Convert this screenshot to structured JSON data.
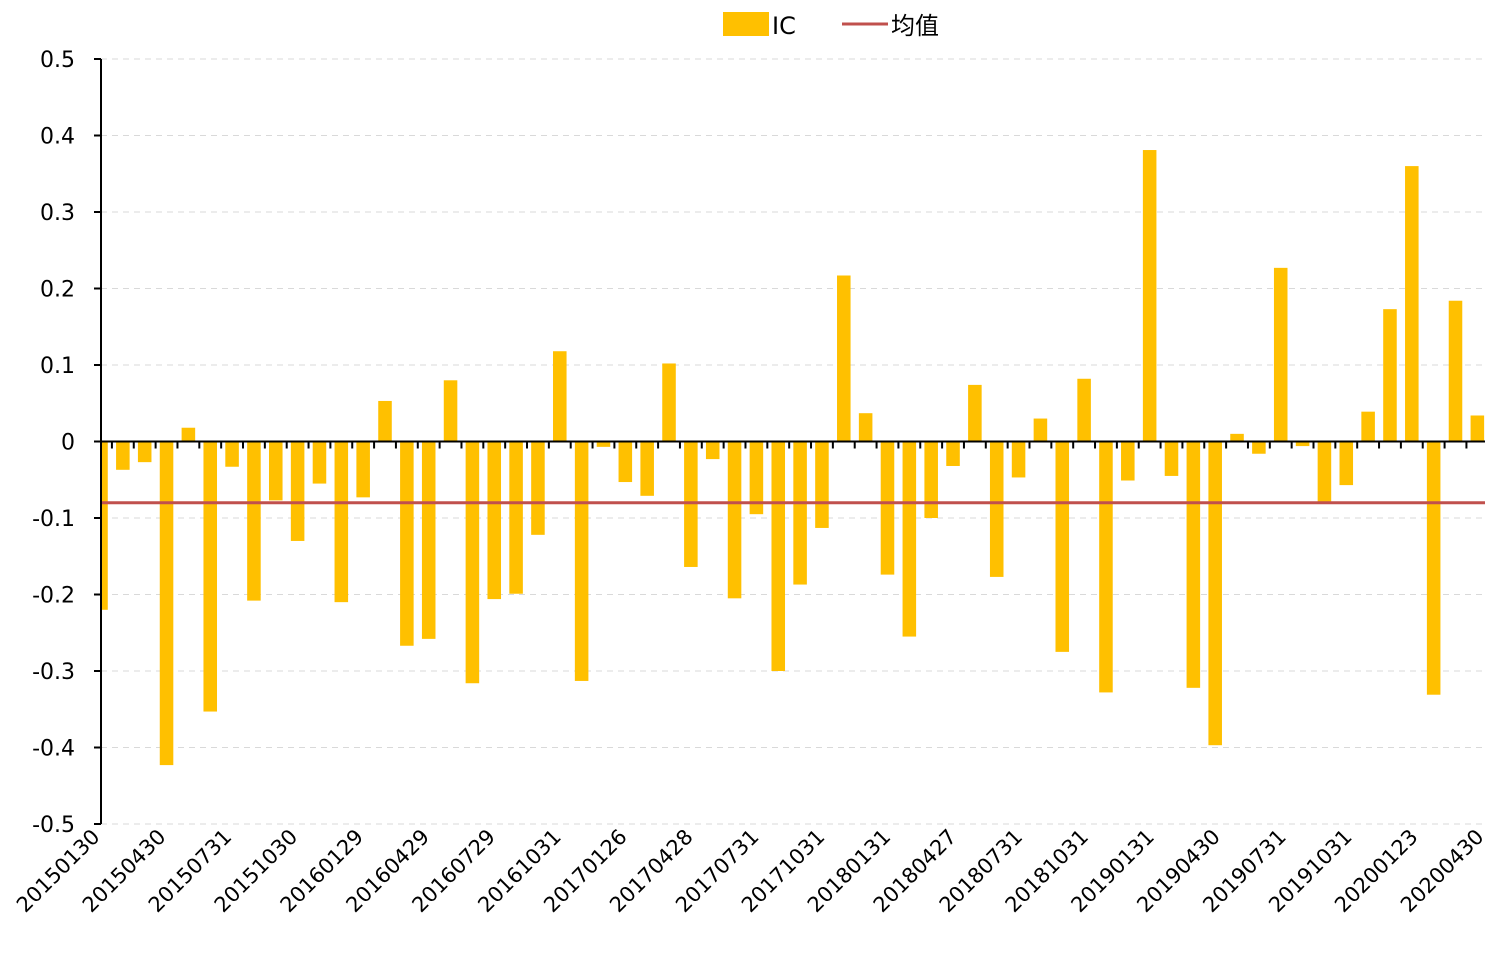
{
  "chart_data": {
    "type": "bar",
    "legend_position": "top-center",
    "grid": true,
    "ylim": [
      -0.5,
      0.5
    ],
    "yticks": [
      "0.5",
      "0.4",
      "0.3",
      "0.2",
      "0.1",
      "0",
      "-0.1",
      "-0.2",
      "-0.3",
      "-0.4",
      "-0.5"
    ],
    "xtick_labels": [
      "20150130",
      "20150430",
      "20150731",
      "20151030",
      "20160129",
      "20160429",
      "20160729",
      "20161031",
      "20170126",
      "20170428",
      "20170731",
      "20171031",
      "20180131",
      "20180427",
      "20180731",
      "20181031",
      "20190131",
      "20190430",
      "20190731",
      "20191031",
      "20200123",
      "20200430"
    ],
    "series": [
      {
        "name": "IC",
        "type": "bar",
        "values": [
          -0.22,
          -0.037,
          -0.027,
          -0.423,
          0.018,
          -0.353,
          -0.033,
          -0.208,
          -0.077,
          -0.13,
          -0.055,
          -0.21,
          -0.073,
          0.053,
          -0.267,
          -0.258,
          0.08,
          -0.316,
          -0.206,
          -0.199,
          -0.122,
          0.118,
          -0.313,
          -0.007,
          -0.053,
          -0.071,
          0.102,
          -0.164,
          -0.023,
          -0.205,
          -0.095,
          -0.3,
          -0.187,
          -0.113,
          0.217,
          0.037,
          -0.174,
          -0.255,
          -0.1,
          -0.032,
          0.074,
          -0.177,
          -0.047,
          0.03,
          -0.275,
          0.082,
          -0.328,
          -0.051,
          0.381,
          -0.045,
          -0.322,
          -0.397,
          0.01,
          -0.016,
          0.227,
          -0.006,
          -0.079,
          -0.057,
          0.039,
          0.173,
          0.36,
          -0.331,
          0.184,
          0.034
        ]
      },
      {
        "name": "均值",
        "type": "line",
        "value": -0.08
      }
    ],
    "colors": {
      "bar": "#FFC000",
      "mean_line": "#C0504D",
      "axis": "#000000",
      "grid": "#D9D9D9"
    }
  }
}
